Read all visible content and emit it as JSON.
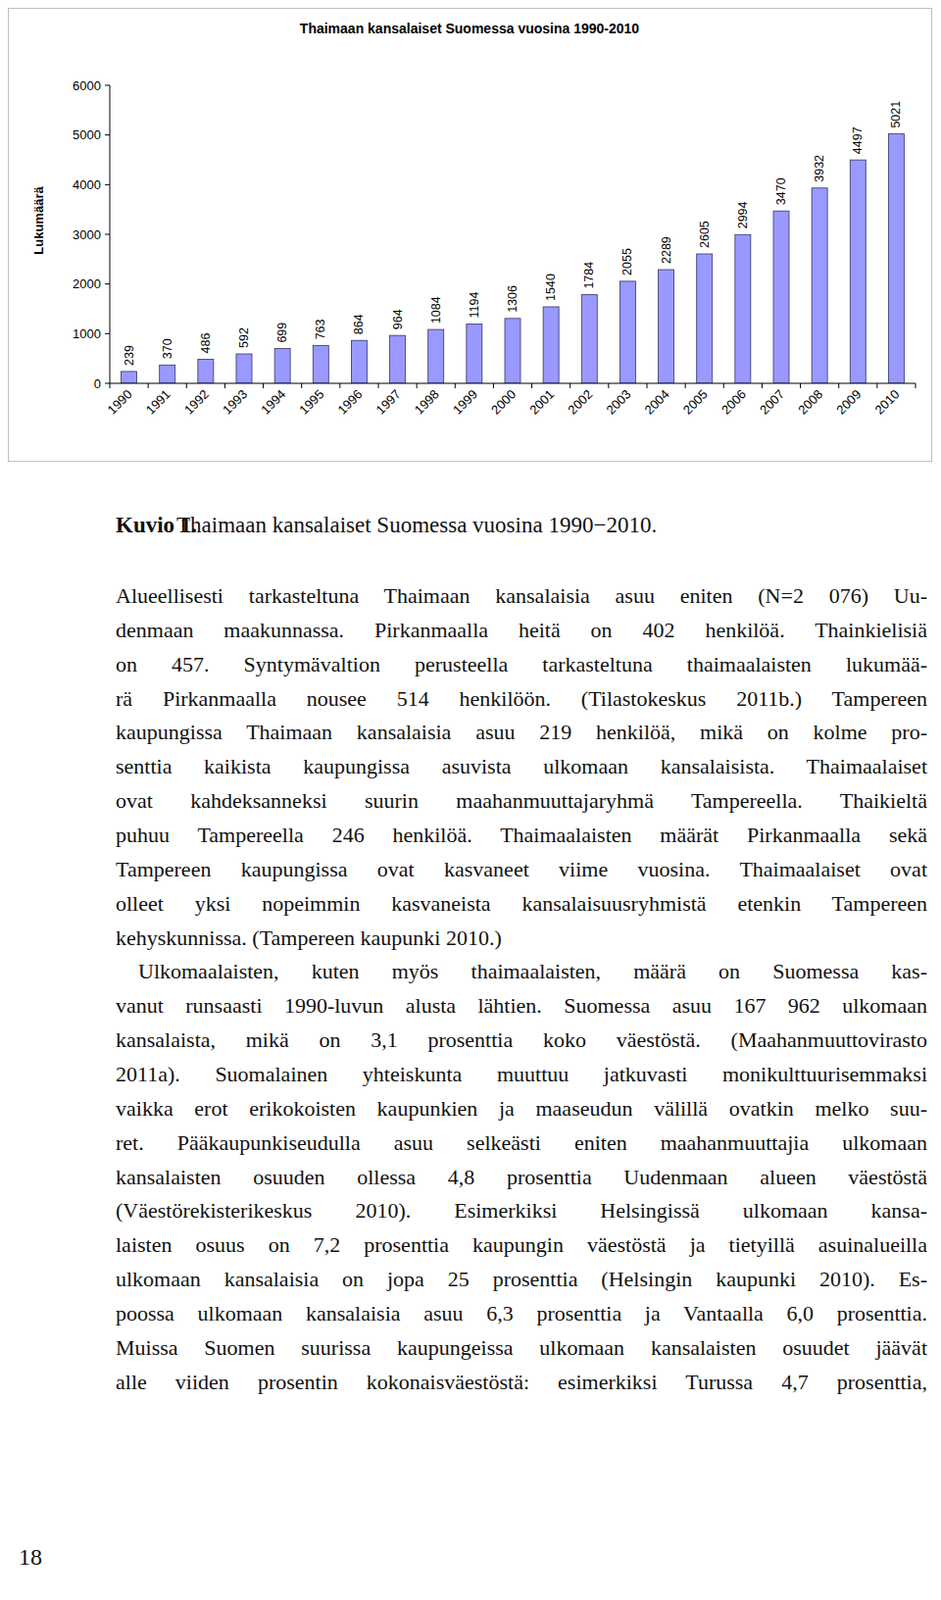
{
  "chart_data": {
    "type": "bar",
    "title": "Thaimaan kansalaiset Suomessa vuosina 1990-2010",
    "y_label": "Lukumäärä",
    "categories": [
      "1990",
      "1991",
      "1992",
      "1993",
      "1994",
      "1995",
      "1996",
      "1997",
      "1998",
      "1999",
      "2000",
      "2001",
      "2002",
      "2003",
      "2004",
      "2005",
      "2006",
      "2007",
      "2008",
      "2009",
      "2010"
    ],
    "values": [
      239,
      370,
      486,
      592,
      699,
      763,
      864,
      964,
      1084,
      1194,
      1306,
      1540,
      1784,
      2055,
      2289,
      2605,
      2994,
      3470,
      3932,
      4497,
      5021
    ],
    "color": "#9999ff",
    "ylim": [
      0,
      6000
    ],
    "yticks": [
      0,
      1000,
      2000,
      3000,
      4000,
      5000,
      6000
    ],
    "grid": false,
    "data_labels": true
  },
  "caption": {
    "label": "Kuvio 1.",
    "text": "Thaimaan kansalaiset Suomessa vuosina 1990−2010."
  },
  "paragraphs": [
    {
      "lines": [
        "Alueellisesti tarkasteltuna Thaimaan kansalaisia asuu eniten (N=2 076) Uu-",
        "denmaan maakunnassa. Pirkanmaalla heitä on 402 henkilöä. Thainkielisiä",
        "on 457. Syntymävaltion perusteella tarkasteltuna thaimaalaisten lukumää-",
        "rä Pirkanmaalla nousee 514 henkilöön. (Tilastokeskus 2011b.) Tampereen",
        "kaupungissa Thaimaan kansalaisia asuu 219 henkilöä, mikä on kolme pro-",
        "senttia kaikista kaupungissa asuvista ulkomaan kansalaisista. Thaimaalaiset",
        "ovat kahdeksanneksi suurin maahanmuuttajaryhmä Tampereella. Thaikieltä",
        "puhuu Tampereella 246 henkilöä. Thaimaalaisten määrät Pirkanmaalla sekä",
        "Tampereen kaupungissa ovat kasvaneet viime vuosina. Thaimaalaiset ovat",
        "olleet yksi nopeimmin kasvaneista kansalaisuusryhmistä etenkin Tampereen",
        "kehyskunnissa. (Tampereen kaupunki 2010.)"
      ]
    },
    {
      "lines": [
        "Ulkomaalaisten, kuten myös thaimaalaisten, määrä on Suomessa kas-",
        "vanut runsaasti 1990-luvun alusta lähtien. Suomessa asuu 167 962 ulkomaan",
        "kansalaista, mikä on 3,1 prosenttia koko väestöstä. (Maahanmuuttovirasto",
        "2011a). Suomalainen yhteiskunta muuttuu jatkuvasti monikulttuurisemmaksi",
        "vaikka erot erikokoisten kaupunkien ja maaseudun välillä ovatkin melko suu-",
        "ret. Pääkaupunkiseudulla asuu selkeästi eniten maahanmuuttajia ulkomaan",
        "kansalaisten osuuden ollessa 4,8 prosenttia Uudenmaan alueen väestöstä",
        "(Väestörekisterikeskus 2010). Esimerkiksi Helsingissä ulkomaan kansa-",
        "laisten osuus on 7,2 prosenttia kaupungin väestöstä ja tietyillä asuinalueilla",
        "ulkomaan kansalaisia on jopa 25 prosenttia (Helsingin kaupunki 2010). Es-",
        "poossa ulkomaan kansalaisia asuu 6,3 prosenttia ja Vantaalla 6,0 prosenttia.",
        "Muissa Suomen suurissa kaupungeissa ulkomaan kansalaisten osuudet jäävät",
        "alle viiden prosentin kokonaisväestöstä: esimerkiksi Turussa 4,7 prosenttia,"
      ]
    }
  ],
  "page_number": "18"
}
